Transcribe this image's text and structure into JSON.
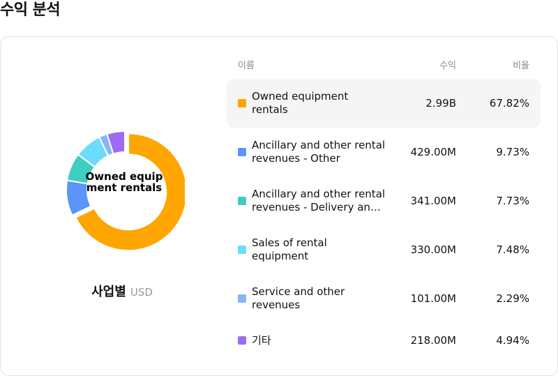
{
  "page": {
    "title": "수익 분석"
  },
  "caption": {
    "title": "사업별",
    "currency": "USD"
  },
  "center_label": "Owned equipment rentals",
  "table": {
    "headers": {
      "name": "이름",
      "revenue": "수익",
      "share": "비율"
    },
    "rows": [
      {
        "name": "Owned equipment rentals",
        "revenue": "2.99B",
        "share": "67.82%",
        "color": "#FFA500",
        "highlighted": true
      },
      {
        "name": "Ancillary and other rental revenues - Other",
        "revenue": "429.00M",
        "share": "9.73%",
        "color": "#5B95F9",
        "highlighted": false
      },
      {
        "name": "Ancillary and other rental revenues - Delivery and pick-up",
        "revenue": "341.00M",
        "share": "7.73%",
        "color": "#3ECFC0",
        "highlighted": false
      },
      {
        "name": "Sales of rental equipment",
        "revenue": "330.00M",
        "share": "7.48%",
        "color": "#6DDBFA",
        "highlighted": false
      },
      {
        "name": "Service and other revenues",
        "revenue": "101.00M",
        "share": "2.29%",
        "color": "#8AB4F8",
        "highlighted": false
      },
      {
        "name": "기타",
        "revenue": "218.00M",
        "share": "4.94%",
        "color": "#9D6BF5",
        "highlighted": false
      }
    ]
  },
  "chart_data": {
    "type": "pie",
    "variant": "donut",
    "title": "사업별",
    "unit": "USD",
    "categories": [
      "Owned equipment rentals",
      "Ancillary and other rental revenues - Other",
      "Ancillary and other rental revenues - Delivery and pick-up",
      "Sales of rental equipment",
      "Service and other revenues",
      "기타"
    ],
    "values": [
      67.82,
      9.73,
      7.73,
      7.48,
      2.29,
      4.94
    ],
    "revenues": [
      "2.99B",
      "429.00M",
      "341.00M",
      "330.00M",
      "101.00M",
      "218.00M"
    ],
    "colors": [
      "#FFA500",
      "#5B95F9",
      "#3ECFC0",
      "#6DDBFA",
      "#8AB4F8",
      "#9D6BF5"
    ],
    "highlighted_index": 0
  }
}
